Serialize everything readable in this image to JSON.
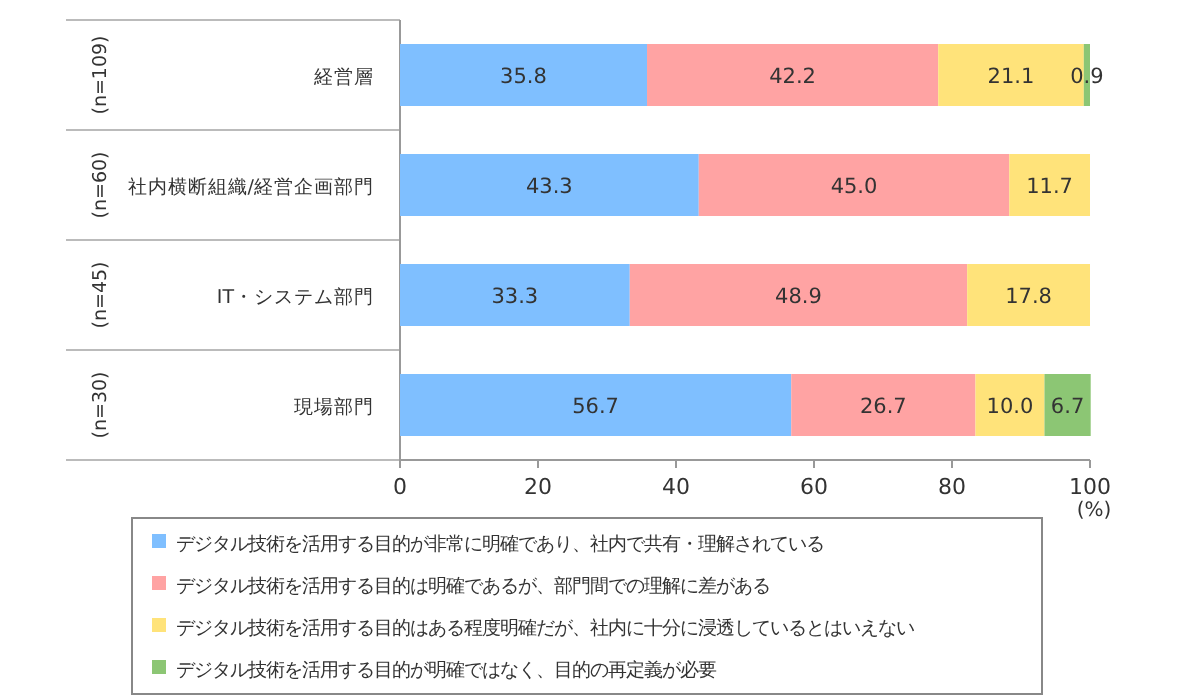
{
  "chart_data": {
    "type": "bar",
    "orientation": "horizontal",
    "stacked": true,
    "categories": [
      "経営層",
      "社内横断組織/経営企画部門",
      "IT・システム部門",
      "現場部門"
    ],
    "series": [
      {
        "name": "デジタル技術を活用する目的が非常に明確であり、社内で共有・理解されている",
        "color": "#7fbfff",
        "values": [
          35.8,
          43.3,
          33.3,
          56.7
        ],
        "value_labels": [
          "35.8",
          "43.3",
          "33.3",
          "56.7"
        ]
      },
      {
        "name": "デジタル技術を活用する目的は明確であるが、部門間での理解に差がある",
        "color": "#ffa3a3",
        "values": [
          42.2,
          45.0,
          48.9,
          26.7
        ],
        "value_labels": [
          "42.2",
          "45.0",
          "48.9",
          "26.7"
        ]
      },
      {
        "name": "デジタル技術を活用する目的はある程度明確だが、社内に十分に浸透しているとはいえない",
        "color": "#ffe37a",
        "values": [
          21.1,
          11.7,
          17.8,
          10.0
        ],
        "value_labels": [
          "21.1",
          "11.7",
          "17.8",
          "10.0"
        ]
      },
      {
        "name": "デジタル技術を活用する目的が明確ではなく、目的の再定義が必要",
        "color": "#8cc674",
        "values": [
          0.9,
          null,
          null,
          6.7
        ],
        "value_labels": [
          "0.9",
          null,
          null,
          "6.7"
        ]
      }
    ],
    "xlim": [
      0,
      100
    ],
    "xticks": [
      0,
      20,
      40,
      60,
      80,
      100
    ],
    "xlabel": "(%)",
    "legend": "bottom",
    "grid": false,
    "annotations": [
      "(n=109)",
      "(n=60)",
      "(n=45)",
      "(n=30)"
    ]
  }
}
